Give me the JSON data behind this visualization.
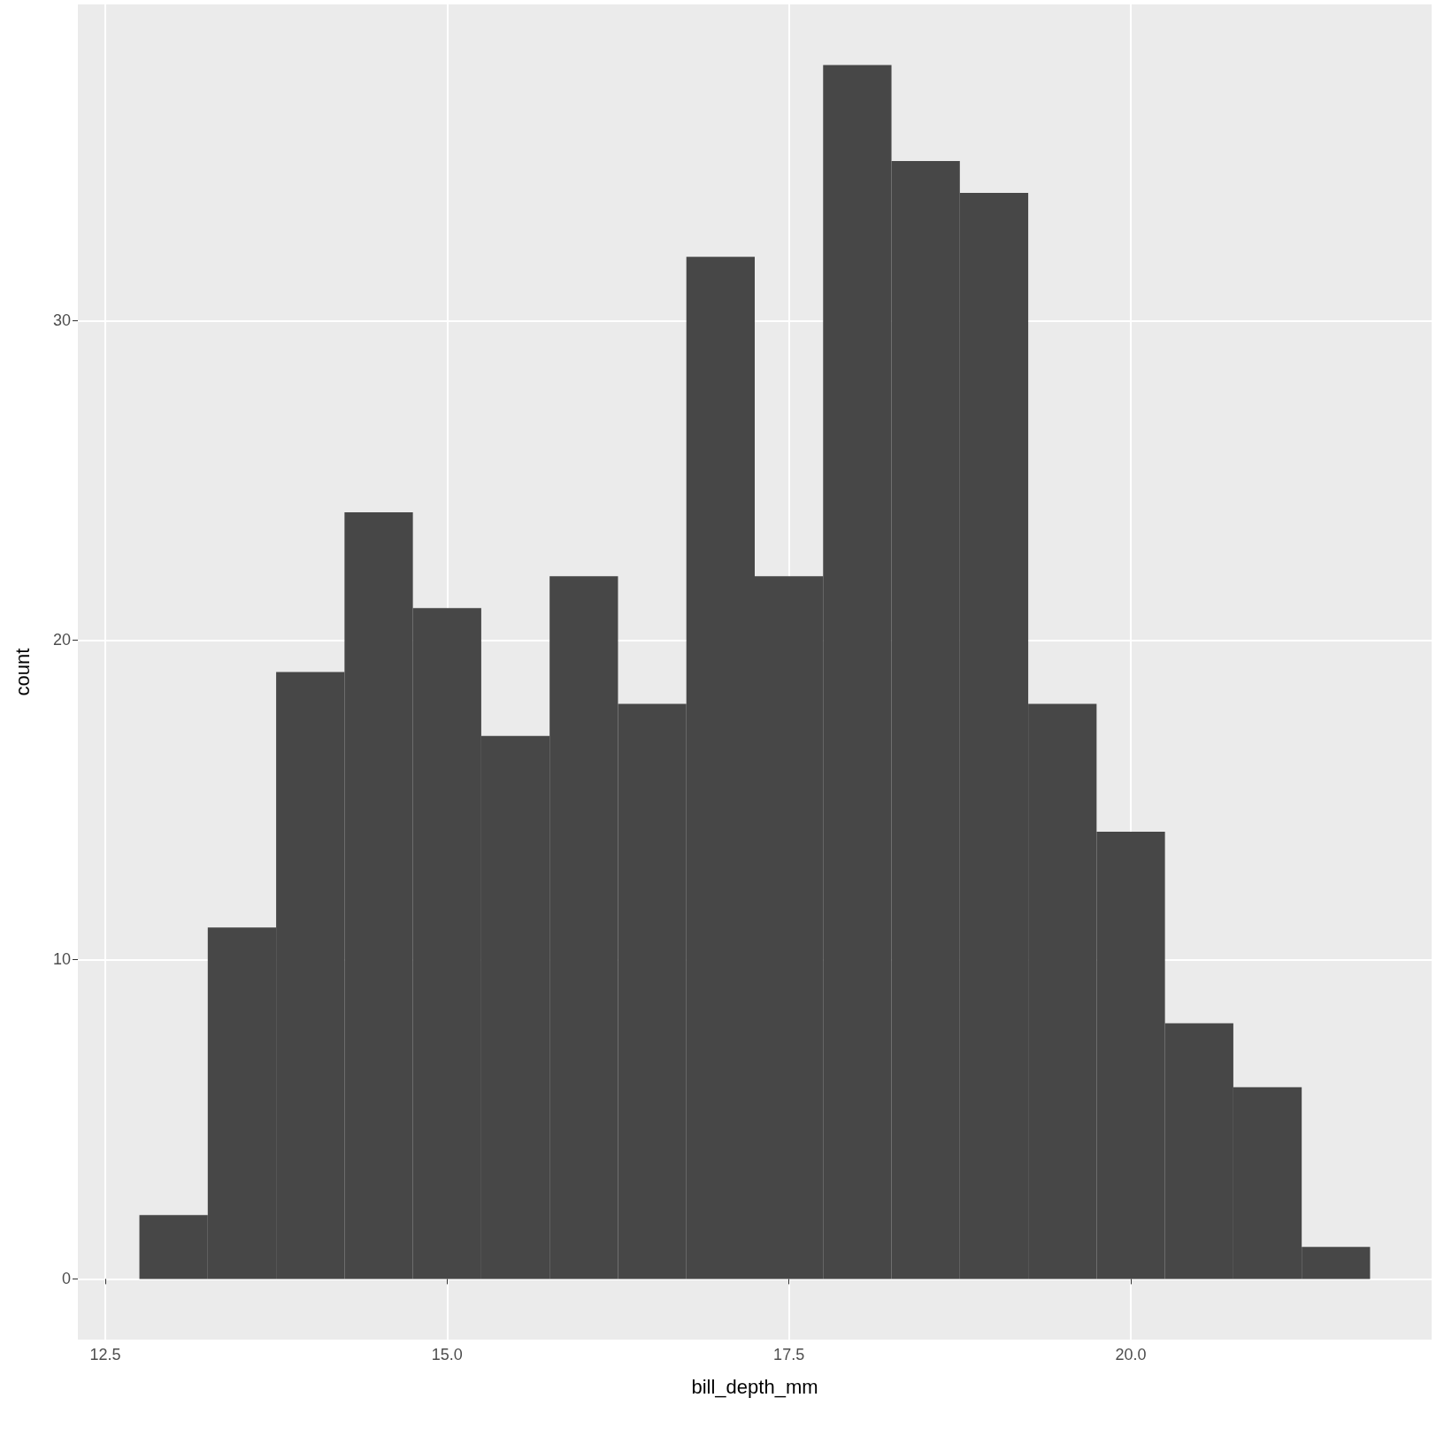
{
  "chart_data": {
    "type": "histogram",
    "xlabel": "bill_depth_mm",
    "ylabel": "count",
    "color": "#474747",
    "bins": [
      12.75,
      13.25,
      13.75,
      14.25,
      14.75,
      15.25,
      15.75,
      16.25,
      16.75,
      17.25,
      17.75,
      18.25,
      18.75,
      19.25,
      19.75,
      20.25,
      20.75,
      21.25,
      21.75
    ],
    "values": [
      2,
      11,
      19,
      24,
      21,
      17,
      22,
      18,
      32,
      22,
      38,
      35,
      34,
      18,
      14,
      8,
      6,
      1
    ],
    "xlim": [
      12.3,
      22.2
    ],
    "ylim": [
      -1.9,
      39.9
    ],
    "xticks": [
      {
        "value": 12.5,
        "label": "12.5"
      },
      {
        "value": 15,
        "label": "15.0"
      },
      {
        "value": 17.5,
        "label": "17.5"
      },
      {
        "value": 20,
        "label": "20.0"
      }
    ],
    "yticks": [
      0,
      10,
      20,
      30
    ],
    "grid": true
  }
}
